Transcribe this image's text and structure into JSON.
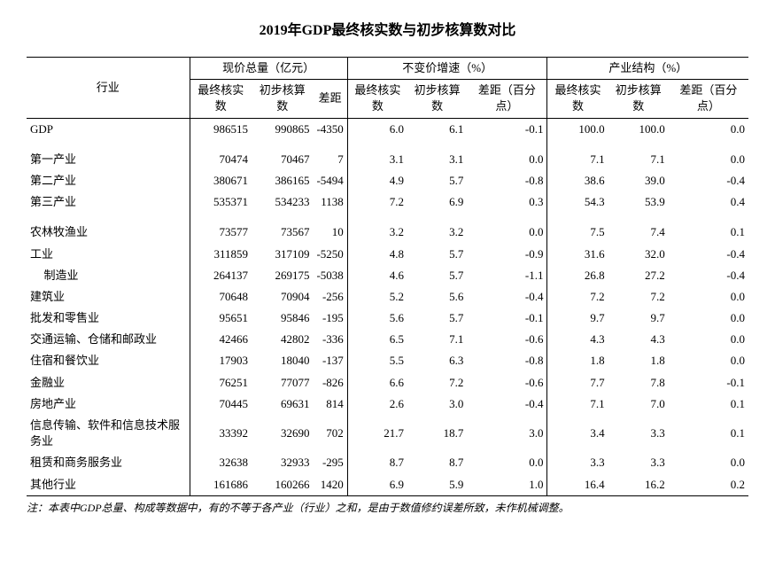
{
  "title": "2019年GDP最终核实数与初步核算数对比",
  "header": {
    "industry": "行业",
    "group1": "现价总量（亿元）",
    "group2": "不变价增速（%）",
    "group3": "产业结构（%）",
    "final": "最终核实数",
    "prelim": "初步核算数",
    "diff": "差距",
    "diff_pp": "差距（百分点）"
  },
  "rows": {
    "gdp": {
      "label": "GDP",
      "a": "986515",
      "b": "990865",
      "c": "-4350",
      "d": "6.0",
      "e": "6.1",
      "f": "-0.1",
      "g": "100.0",
      "h": "100.0",
      "i": "0.0"
    },
    "p1": {
      "label": "第一产业",
      "a": "70474",
      "b": "70467",
      "c": "7",
      "d": "3.1",
      "e": "3.1",
      "f": "0.0",
      "g": "7.1",
      "h": "7.1",
      "i": "0.0"
    },
    "p2": {
      "label": "第二产业",
      "a": "380671",
      "b": "386165",
      "c": "-5494",
      "d": "4.9",
      "e": "5.7",
      "f": "-0.8",
      "g": "38.6",
      "h": "39.0",
      "i": "-0.4"
    },
    "p3": {
      "label": "第三产业",
      "a": "535371",
      "b": "534233",
      "c": "1138",
      "d": "7.2",
      "e": "6.9",
      "f": "0.3",
      "g": "54.3",
      "h": "53.9",
      "i": "0.4"
    },
    "r1": {
      "label": "农林牧渔业",
      "a": "73577",
      "b": "73567",
      "c": "10",
      "d": "3.2",
      "e": "3.2",
      "f": "0.0",
      "g": "7.5",
      "h": "7.4",
      "i": "0.1"
    },
    "r2": {
      "label": "工业",
      "a": "311859",
      "b": "317109",
      "c": "-5250",
      "d": "4.8",
      "e": "5.7",
      "f": "-0.9",
      "g": "31.6",
      "h": "32.0",
      "i": "-0.4"
    },
    "r2a": {
      "label": "制造业",
      "a": "264137",
      "b": "269175",
      "c": "-5038",
      "d": "4.6",
      "e": "5.7",
      "f": "-1.1",
      "g": "26.8",
      "h": "27.2",
      "i": "-0.4"
    },
    "r3": {
      "label": "建筑业",
      "a": "70648",
      "b": "70904",
      "c": "-256",
      "d": "5.2",
      "e": "5.6",
      "f": "-0.4",
      "g": "7.2",
      "h": "7.2",
      "i": "0.0"
    },
    "r4": {
      "label": "批发和零售业",
      "a": "95651",
      "b": "95846",
      "c": "-195",
      "d": "5.6",
      "e": "5.7",
      "f": "-0.1",
      "g": "9.7",
      "h": "9.7",
      "i": "0.0"
    },
    "r5": {
      "label": "交通运输、仓储和邮政业",
      "a": "42466",
      "b": "42802",
      "c": "-336",
      "d": "6.5",
      "e": "7.1",
      "f": "-0.6",
      "g": "4.3",
      "h": "4.3",
      "i": "0.0"
    },
    "r6": {
      "label": "住宿和餐饮业",
      "a": "17903",
      "b": "18040",
      "c": "-137",
      "d": "5.5",
      "e": "6.3",
      "f": "-0.8",
      "g": "1.8",
      "h": "1.8",
      "i": "0.0"
    },
    "r7": {
      "label": "金融业",
      "a": "76251",
      "b": "77077",
      "c": "-826",
      "d": "6.6",
      "e": "7.2",
      "f": "-0.6",
      "g": "7.7",
      "h": "7.8",
      "i": "-0.1"
    },
    "r8": {
      "label": "房地产业",
      "a": "70445",
      "b": "69631",
      "c": "814",
      "d": "2.6",
      "e": "3.0",
      "f": "-0.4",
      "g": "7.1",
      "h": "7.0",
      "i": "0.1"
    },
    "r9": {
      "label": "信息传输、软件和信息技术服务业",
      "a": "33392",
      "b": "32690",
      "c": "702",
      "d": "21.7",
      "e": "18.7",
      "f": "3.0",
      "g": "3.4",
      "h": "3.3",
      "i": "0.1"
    },
    "r10": {
      "label": "租赁和商务服务业",
      "a": "32638",
      "b": "32933",
      "c": "-295",
      "d": "8.7",
      "e": "8.7",
      "f": "0.0",
      "g": "3.3",
      "h": "3.3",
      "i": "0.0"
    },
    "r11": {
      "label": "其他行业",
      "a": "161686",
      "b": "160266",
      "c": "1420",
      "d": "6.9",
      "e": "5.9",
      "f": "1.0",
      "g": "16.4",
      "h": "16.2",
      "i": "0.2"
    }
  },
  "footnote": "注：本表中GDP总量、构成等数据中，有的不等于各产业（行业）之和，是由于数值修约误差所致，未作机械调整。"
}
